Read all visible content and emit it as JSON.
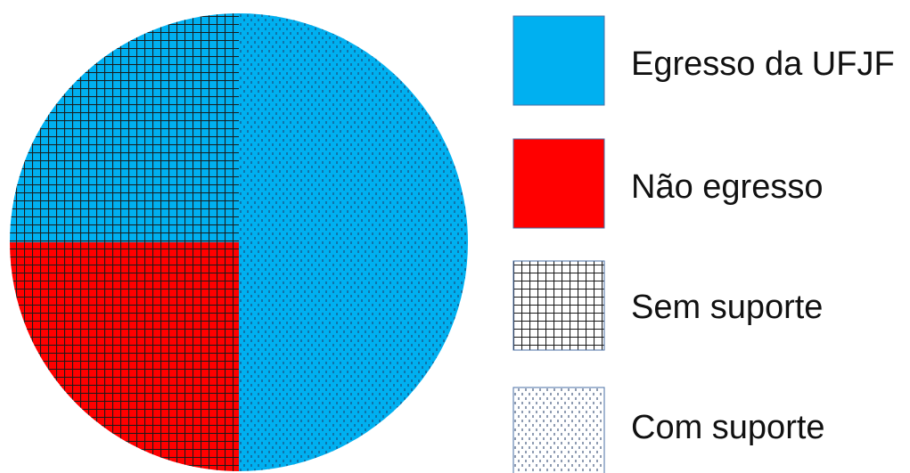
{
  "chart_data": {
    "type": "pie",
    "title": "",
    "colors": {
      "egresso": "#00b0f0",
      "nao_egresso": "#ff0000",
      "grid_line": "#1a1a1a",
      "dot": "#1f3864"
    },
    "slices": [
      {
        "group": "Egresso da UFJF",
        "support": "Sem suporte",
        "value": 25,
        "color": "#00b0f0",
        "pattern": "grid"
      },
      {
        "group": "Não egresso",
        "support": "Sem suporte",
        "value": 25,
        "color": "#ff0000",
        "pattern": "grid"
      },
      {
        "group": "Egresso da UFJF",
        "support": "Com suporte",
        "value": 50,
        "color": "#00b0f0",
        "pattern": "dots"
      }
    ],
    "legend": {
      "placement": "right",
      "items": [
        {
          "label": "Egresso da UFJF",
          "fill": "#00b0f0",
          "pattern": "none",
          "icon": "solid-blue-swatch"
        },
        {
          "label": "Não egresso",
          "fill": "#ff0000",
          "pattern": "none",
          "icon": "solid-red-swatch"
        },
        {
          "label": "Sem suporte",
          "fill": "#ffffff",
          "pattern": "grid",
          "icon": "grid-pattern-swatch"
        },
        {
          "label": "Com suporte",
          "fill": "#ffffff",
          "pattern": "dots",
          "icon": "dots-pattern-swatch"
        }
      ]
    }
  }
}
